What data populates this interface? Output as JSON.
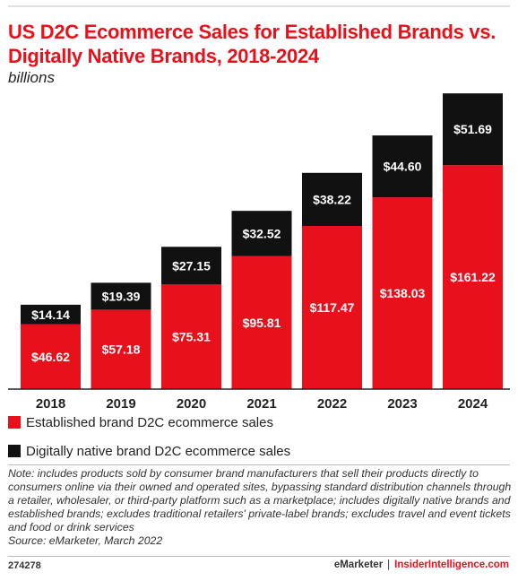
{
  "chart_data": {
    "type": "bar",
    "stacked": true,
    "title": "US D2C Ecommerce Sales for Established Brands vs. Digitally Native Brands, 2018-2024",
    "subtitle": "billions",
    "categories": [
      "2018",
      "2019",
      "2020",
      "2021",
      "2022",
      "2023",
      "2024"
    ],
    "series": [
      {
        "name": "Established brand D2C ecommerce sales",
        "color": "#e8101a",
        "values": [
          46.62,
          57.18,
          75.31,
          95.81,
          117.47,
          138.03,
          161.22
        ],
        "labels": [
          "$46.62",
          "$57.18",
          "$75.31",
          "$95.81",
          "$117.47",
          "$138.03",
          "$161.22"
        ]
      },
      {
        "name": "Digitally native brand D2C ecommerce sales",
        "color": "#111111",
        "values": [
          14.14,
          19.39,
          27.15,
          32.52,
          38.22,
          44.6,
          51.69
        ],
        "labels": [
          "$14.14",
          "$19.39",
          "$27.15",
          "$32.52",
          "$38.22",
          "$44.60",
          "$51.69"
        ]
      }
    ],
    "ylim": [
      0,
      213
    ],
    "grid": false,
    "legend_position": "bottom-left"
  },
  "note": {
    "text": "Note: includes products sold by consumer brand manufacturers that sell their products directly to consumers online via their owned and operated sites, bypassing standard distribution channels through a retailer, wholesaler, or third-party platform such as a marketplace; includes digitally native brands and established brands; excludes traditional retailers' private-label brands; excludes travel and event tickets and food or drink services",
    "source": "Source: eMarketer, March 2022"
  },
  "footer": {
    "chart_id": "274278",
    "brand_emarketer": "eMarketer",
    "separator": "|",
    "brand_insider": "InsiderIntelligence.com"
  }
}
